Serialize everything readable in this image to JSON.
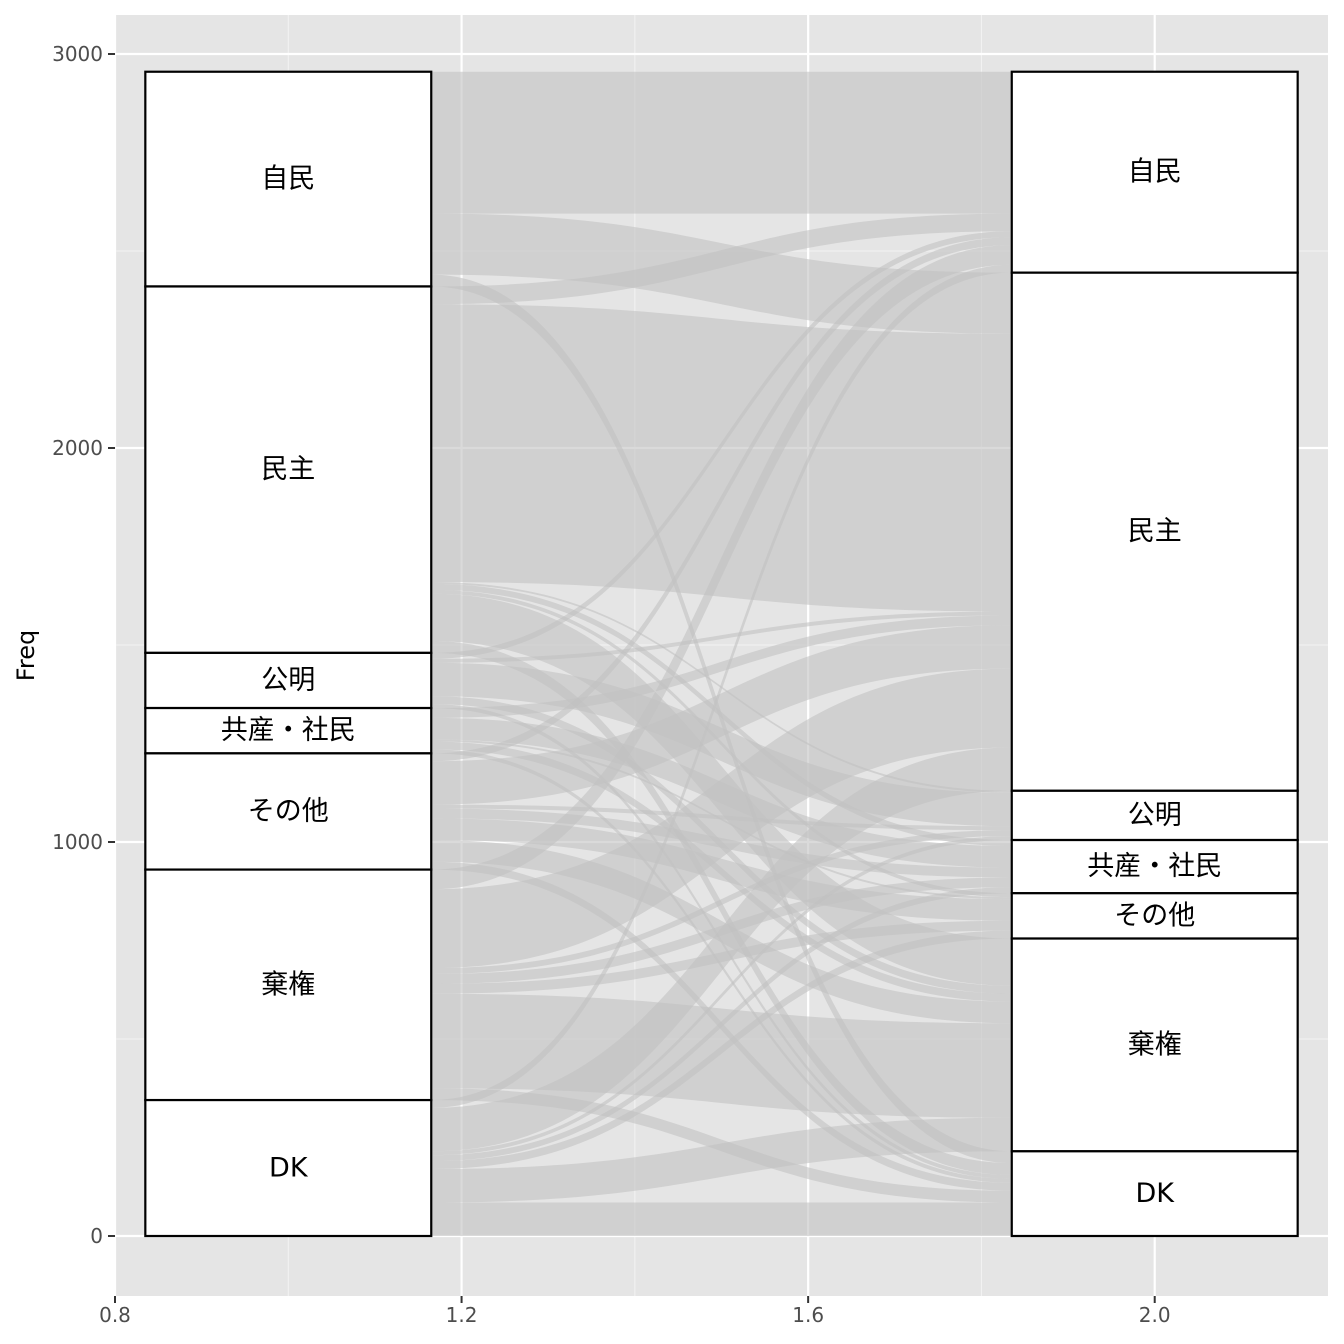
{
  "chart_data": {
    "type": "alluvial",
    "title": "",
    "xlabel": "",
    "ylabel": "Freq",
    "xlim": [
      0.8,
      2.2
    ],
    "ylim": [
      0,
      3000
    ],
    "x_ticks": [
      0.8,
      1.2,
      1.6,
      2.0
    ],
    "x_tick_labels": [
      "0.8",
      "1.2",
      "1.6",
      "2.0"
    ],
    "y_ticks": [
      0,
      1000,
      2000,
      3000
    ],
    "y_tick_labels": [
      "0",
      "1000",
      "2000",
      "3000"
    ],
    "grid": true,
    "background": "#e5e5e5",
    "flow_color": "#c2c2c2",
    "axes": [
      {
        "x": 1.0,
        "strata": [
          {
            "label": "自民",
            "start": 2410,
            "end": 2955
          },
          {
            "label": "民主",
            "start": 1480,
            "end": 2410
          },
          {
            "label": "公明",
            "start": 1340,
            "end": 1480
          },
          {
            "label": "共産・社民",
            "start": 1225,
            "end": 1340
          },
          {
            "label": "その他",
            "start": 930,
            "end": 1225
          },
          {
            "label": "棄権",
            "start": 345,
            "end": 930
          },
          {
            "label": "DK",
            "start": 0,
            "end": 345
          }
        ]
      },
      {
        "x": 2.0,
        "strata": [
          {
            "label": "自民",
            "start": 2445,
            "end": 2955
          },
          {
            "label": "民主",
            "start": 1130,
            "end": 2445
          },
          {
            "label": "公明",
            "start": 1005,
            "end": 1130
          },
          {
            "label": "共産・社民",
            "start": 870,
            "end": 1005
          },
          {
            "label": "その他",
            "start": 755,
            "end": 870
          },
          {
            "label": "棄権",
            "start": 215,
            "end": 755
          },
          {
            "label": "DK",
            "start": 0,
            "end": 215
          }
        ]
      }
    ],
    "flows": [
      {
        "from": "自民",
        "to": "自民",
        "value": 360
      },
      {
        "from": "自民",
        "to": "民主",
        "value": 155
      },
      {
        "from": "自民",
        "to": "DK",
        "value": 30
      },
      {
        "from": "民主",
        "to": "自民",
        "value": 45
      },
      {
        "from": "民主",
        "to": "民主",
        "value": 705
      },
      {
        "from": "民主",
        "to": "公明",
        "value": 5
      },
      {
        "from": "民主",
        "to": "共産・社民",
        "value": 15
      },
      {
        "from": "民主",
        "to": "その他",
        "value": 10
      },
      {
        "from": "民主",
        "to": "棄権",
        "value": 120
      },
      {
        "from": "民主",
        "to": "DK",
        "value": 30
      },
      {
        "from": "公明",
        "to": "自民",
        "value": 15
      },
      {
        "from": "公明",
        "to": "民主",
        "value": 10
      },
      {
        "from": "公明",
        "to": "公明",
        "value": 85
      },
      {
        "from": "公明",
        "to": "棄権",
        "value": 20
      },
      {
        "from": "公明",
        "to": "DK",
        "value": 10
      },
      {
        "from": "共産・社民",
        "to": "民主",
        "value": 25
      },
      {
        "from": "共産・社民",
        "to": "共産・社民",
        "value": 55
      },
      {
        "from": "共産・社民",
        "to": "その他",
        "value": 5
      },
      {
        "from": "共産・社民",
        "to": "棄権",
        "value": 20
      },
      {
        "from": "共産・社民",
        "to": "DK",
        "value": 10
      },
      {
        "from": "その他",
        "to": "自民",
        "value": 20
      },
      {
        "from": "その他",
        "to": "民主",
        "value": 110
      },
      {
        "from": "その他",
        "to": "公明",
        "value": 10
      },
      {
        "from": "その他",
        "to": "共産・社民",
        "value": 25
      },
      {
        "from": "その他",
        "to": "その他",
        "value": 55
      },
      {
        "from": "その他",
        "to": "棄権",
        "value": 55
      },
      {
        "from": "その他",
        "to": "DK",
        "value": 20
      },
      {
        "from": "棄権",
        "to": "自民",
        "value": 50
      },
      {
        "from": "棄権",
        "to": "民主",
        "value": 200
      },
      {
        "from": "棄権",
        "to": "公明",
        "value": 15
      },
      {
        "from": "棄権",
        "to": "共産・社民",
        "value": 25
      },
      {
        "from": "棄権",
        "to": "その他",
        "value": 25
      },
      {
        "from": "棄権",
        "to": "棄権",
        "value": 240
      },
      {
        "from": "棄権",
        "to": "DK",
        "value": 30
      },
      {
        "from": "DK",
        "to": "自民",
        "value": 20
      },
      {
        "from": "DK",
        "to": "民主",
        "value": 110
      },
      {
        "from": "DK",
        "to": "公明",
        "value": 10
      },
      {
        "from": "DK",
        "to": "共産・社民",
        "value": 15
      },
      {
        "from": "DK",
        "to": "その他",
        "value": 20
      },
      {
        "from": "DK",
        "to": "棄権",
        "value": 85
      },
      {
        "from": "DK",
        "to": "DK",
        "value": 85
      }
    ]
  }
}
